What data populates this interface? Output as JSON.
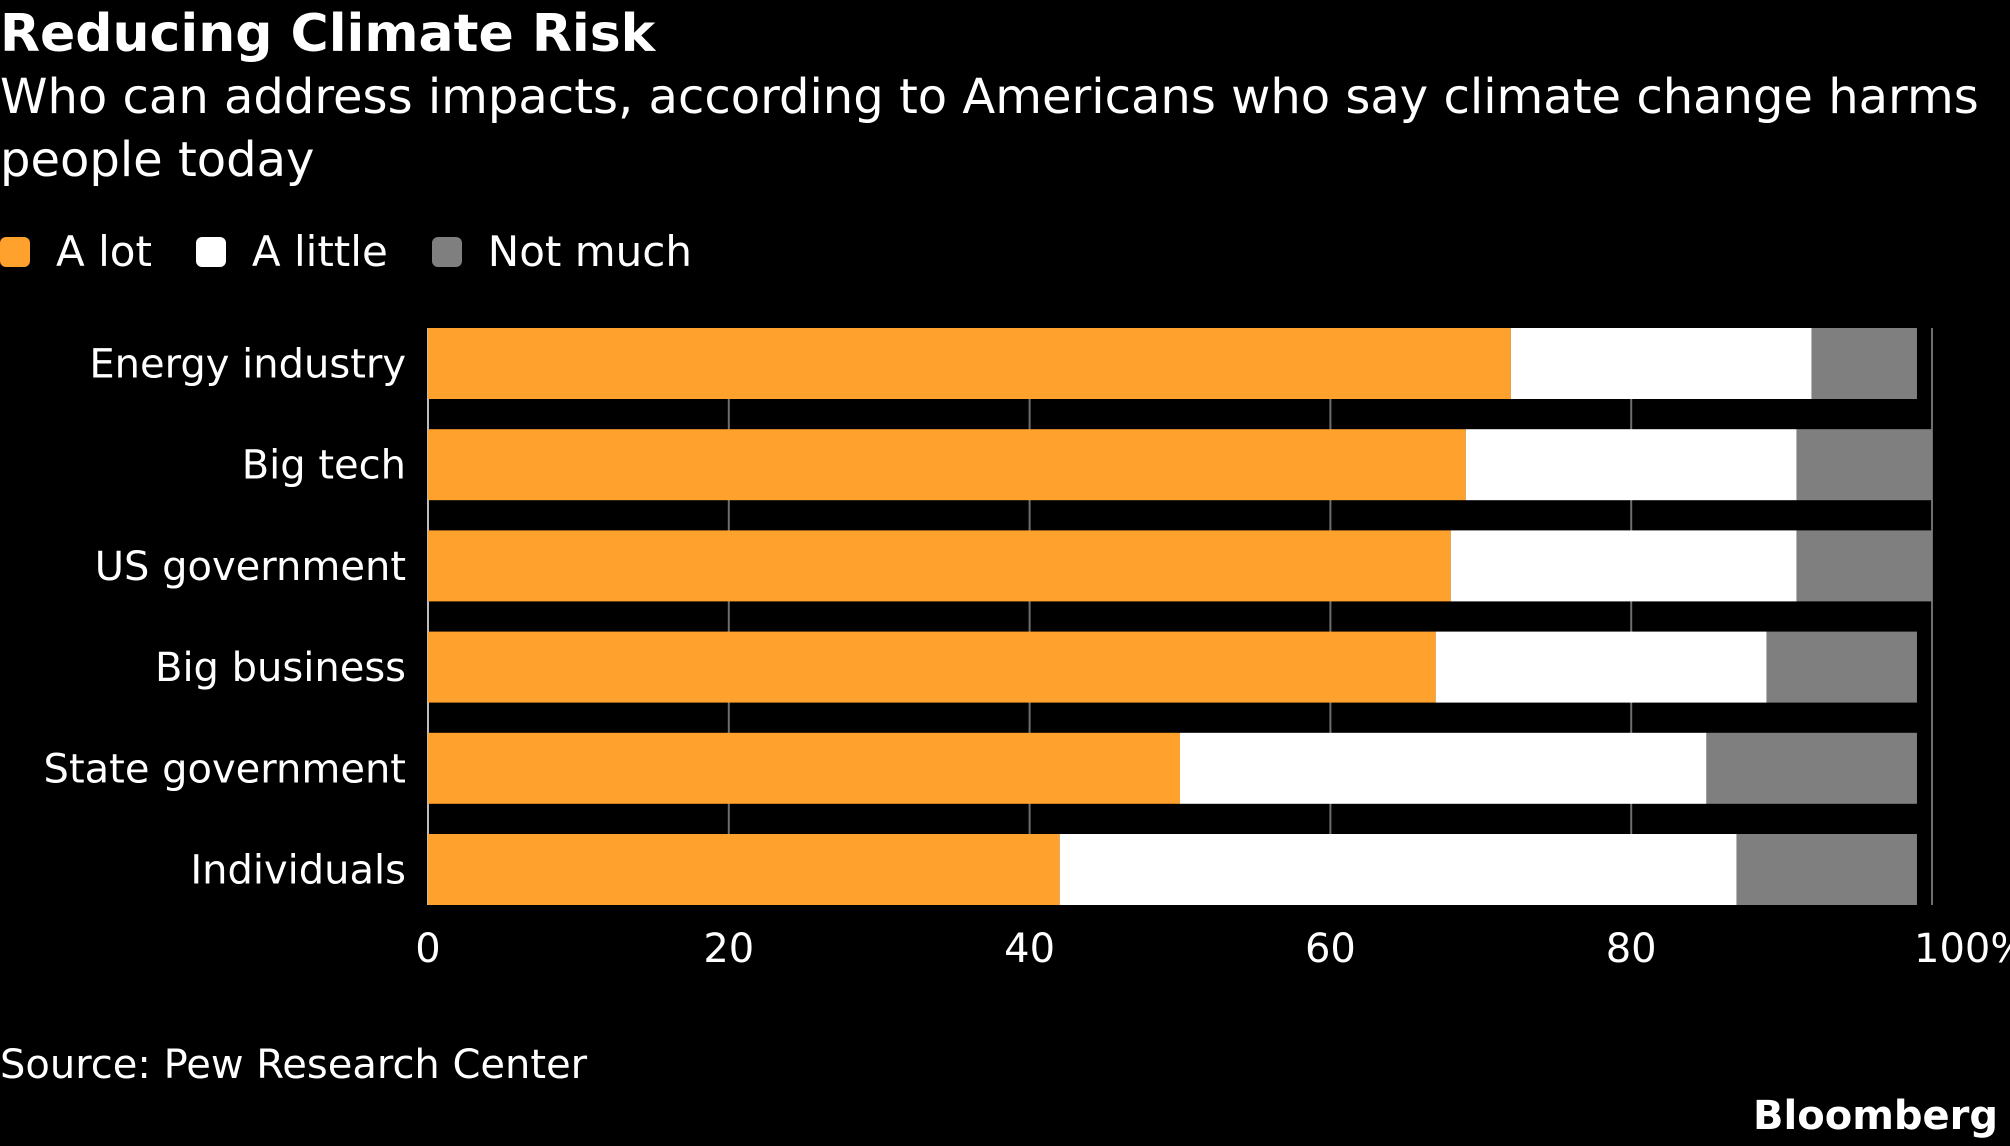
{
  "header": {
    "title": "Reducing Climate Risk",
    "subtitle": "Who can address impacts, according to Americans who say climate change harms people today"
  },
  "legend": [
    {
      "label": "A lot",
      "color": "#ffa12d"
    },
    {
      "label": "A little",
      "color": "#ffffff"
    },
    {
      "label": "Not much",
      "color": "#7f7f7f"
    }
  ],
  "footer": {
    "source": "Source: Pew Research Center",
    "brand": "Bloomberg"
  },
  "chart_data": {
    "type": "bar",
    "orientation": "horizontal",
    "stacked": true,
    "categories": [
      "Energy industry",
      "Big tech",
      "US government",
      "Big business",
      "State government",
      "Individuals"
    ],
    "series": [
      {
        "name": "A lot",
        "color": "#ffa12d",
        "values": [
          72,
          69,
          68,
          67,
          50,
          42
        ]
      },
      {
        "name": "A little",
        "color": "#ffffff",
        "values": [
          20,
          22,
          23,
          22,
          35,
          45
        ]
      },
      {
        "name": "Not much",
        "color": "#7f7f7f",
        "values": [
          7,
          9,
          9,
          10,
          14,
          12
        ]
      }
    ],
    "x_ticks": [
      "0",
      "20",
      "40",
      "60",
      "80",
      "100%"
    ],
    "xlim": [
      0,
      100
    ],
    "grid": true,
    "legend_position": "top-left"
  }
}
